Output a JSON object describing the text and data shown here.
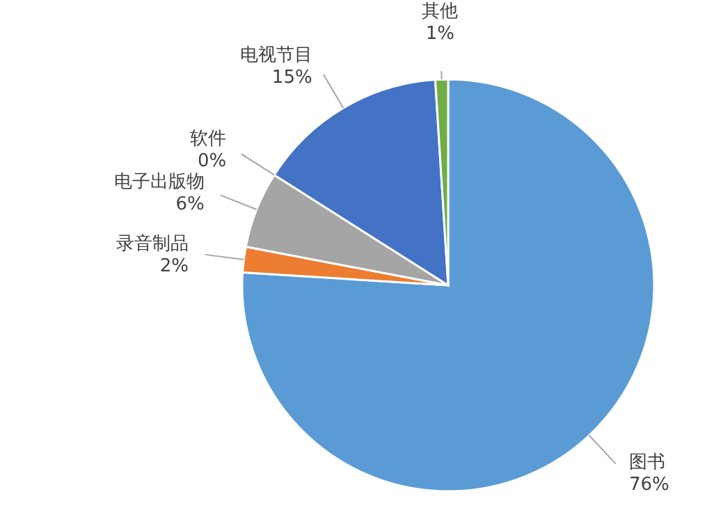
{
  "chart_data": {
    "type": "pie",
    "categories": [
      "图书",
      "录音制品",
      "电子出版物",
      "软件",
      "电视节目",
      "其他"
    ],
    "values": [
      76,
      2,
      6,
      0,
      15,
      1
    ],
    "value_labels": [
      "76%",
      "2%",
      "6%",
      "0%",
      "15%",
      "1%"
    ],
    "colors": [
      "#5b9bd5",
      "#ed7d31",
      "#a5a5a5",
      "#ffc000",
      "#4472c4",
      "#70ad47"
    ]
  }
}
